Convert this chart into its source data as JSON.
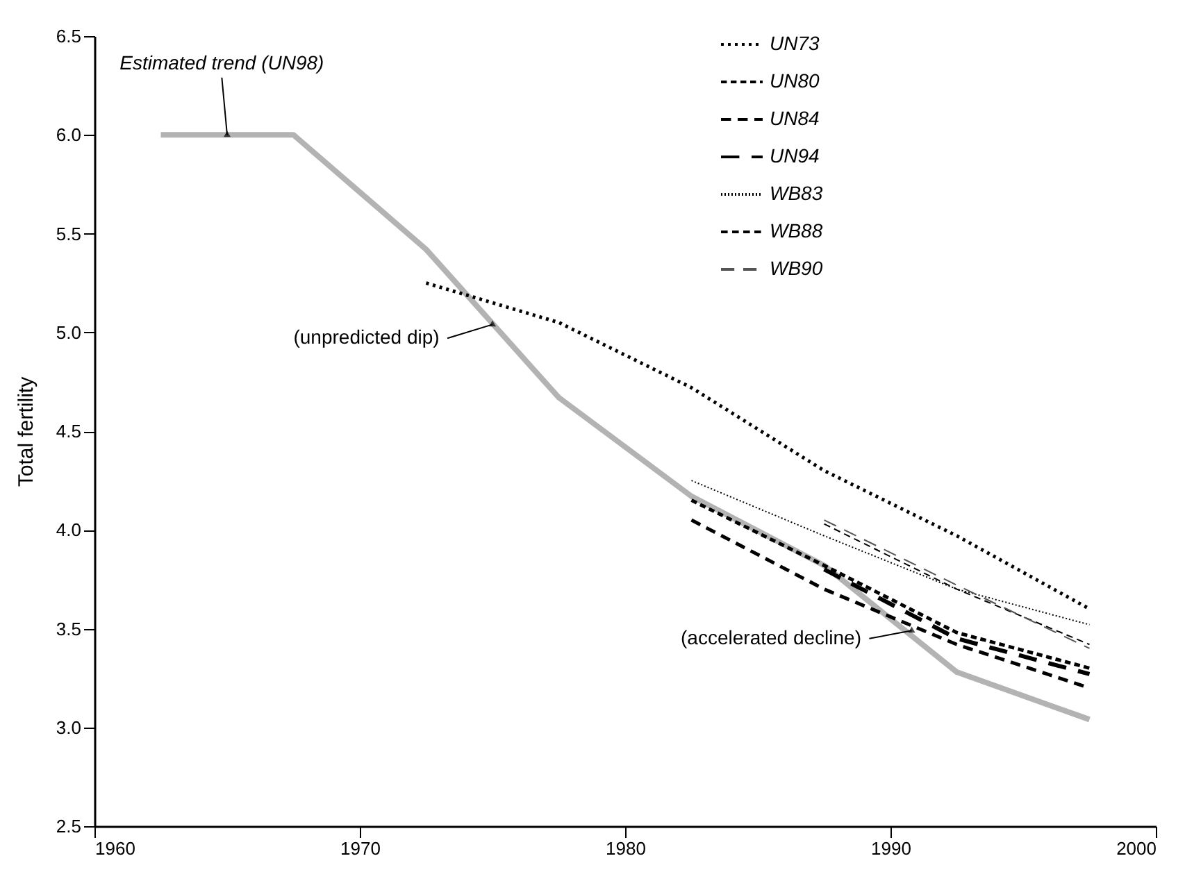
{
  "chart_data": {
    "type": "line",
    "ylabel": "Total fertility",
    "xlim": [
      1960,
      2000
    ],
    "xticks": [
      1960,
      1970,
      1980,
      1990,
      2000
    ],
    "ylim": [
      2.5,
      6.5
    ],
    "yticks": [
      2.5,
      {
        "value": 3,
        "label": "3.0"
      },
      3.5,
      {
        "value": 4,
        "label": "4.0"
      },
      4.5,
      {
        "value": 5,
        "label": "5.0"
      },
      5.5,
      {
        "value": 6,
        "label": "6.0"
      },
      6.5
    ],
    "grid": false,
    "legend": "top",
    "marker": "none",
    "series": [
      {
        "color": "#b3b3b3",
        "line_style": "solid",
        "x": [
          1962.5,
          1967.5,
          1972.5,
          1977.5,
          1982.5,
          1987.5,
          1992.5,
          1997.5
        ],
        "values": [
          6.0,
          6.0,
          5.42,
          4.67,
          4.17,
          3.82,
          3.28,
          3.04
        ]
      },
      {
        "name": "UN73",
        "color": "#000000",
        "line_style": "dotted",
        "x": [
          1972.5,
          1977.5,
          1982.5,
          1987.5,
          1992.5,
          1997.5
        ],
        "values": [
          5.25,
          5.05,
          4.72,
          4.3,
          3.97,
          3.6
        ]
      },
      {
        "name": "UN80",
        "color": "#000000",
        "line_style": "dashed",
        "x": [
          1982.5,
          1987.5,
          1992.5,
          1997.5
        ],
        "values": [
          4.15,
          3.82,
          3.48,
          3.3
        ]
      },
      {
        "name": "UN84",
        "color": "#000000",
        "line_style": "dashed",
        "x": [
          1982.5,
          1987.5,
          1992.5,
          1997.5
        ],
        "values": [
          4.05,
          3.7,
          3.42,
          3.2
        ]
      },
      {
        "name": "UN94",
        "color": "#000000",
        "line_style": "dashed",
        "x": [
          1987.5,
          1992.5,
          1997.5
        ],
        "values": [
          3.8,
          3.45,
          3.27
        ]
      },
      {
        "name": "WB83",
        "color": "#000000",
        "line_style": "dotted",
        "x": [
          1982.5,
          1987.5,
          1992.5,
          1997.5
        ],
        "values": [
          4.25,
          3.97,
          3.7,
          3.52
        ]
      },
      {
        "name": "WB88",
        "color": "#000000",
        "line_style": "dashed",
        "x": [
          1987.5,
          1992.5,
          1997.5
        ],
        "values": [
          4.03,
          3.7,
          3.42
        ]
      },
      {
        "name": "WB90",
        "color": "#555555",
        "line_style": "dashed",
        "x": [
          1987.5,
          1992.5,
          1997.5
        ],
        "values": [
          4.05,
          3.72,
          3.4
        ]
      }
    ],
    "annotations": [
      {
        "text": "Estimated trend (UN98)",
        "x": 1965,
        "y": 6.0
      },
      {
        "text": "(unpredicted dip)",
        "x": 1975,
        "y": 5.04
      },
      {
        "text": "(accelerated decline)",
        "x": 1990.8,
        "y": 3.49
      }
    ]
  }
}
